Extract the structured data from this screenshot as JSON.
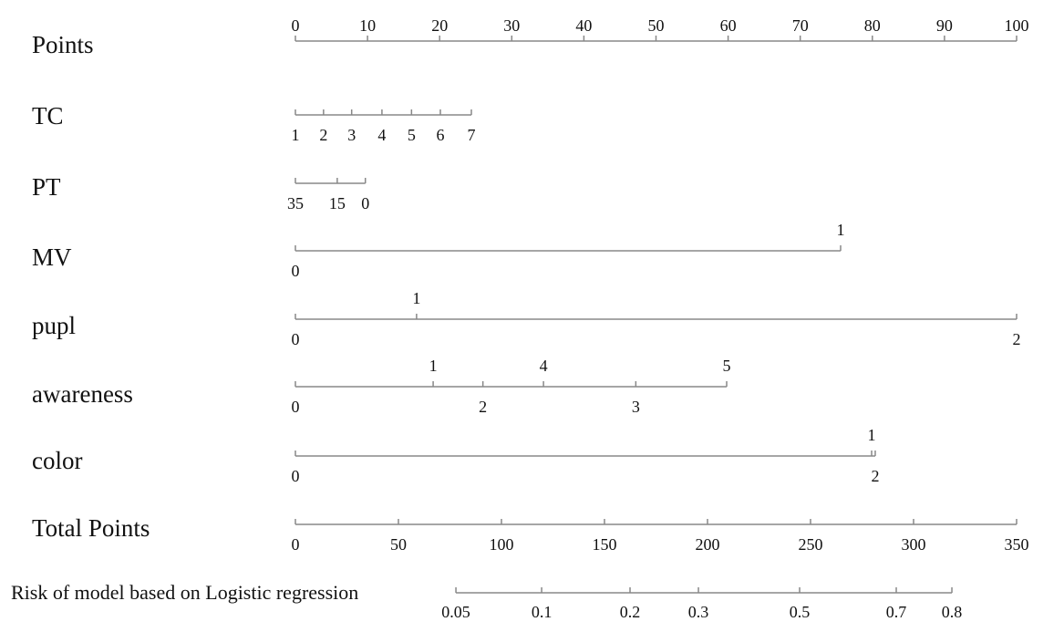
{
  "chart_data": {
    "type": "nomogram",
    "points_axis": {
      "name": "Points",
      "xlim": [
        0,
        100
      ],
      "xticks": [
        0,
        10,
        20,
        30,
        40,
        50,
        60,
        70,
        80,
        90,
        100
      ]
    },
    "scales": [
      {
        "name": "TC",
        "values": [
          1,
          2,
          3,
          4,
          5,
          6,
          7
        ],
        "points": [
          0,
          3.9,
          7.8,
          12.0,
          16.1,
          20.1,
          24.4
        ],
        "label_side": [
          "below",
          "below",
          "below",
          "below",
          "below",
          "below",
          "below"
        ]
      },
      {
        "name": "PT",
        "values": [
          35,
          15,
          0
        ],
        "points": [
          0,
          5.8,
          9.7
        ],
        "label_side": [
          "below",
          "below",
          "below"
        ]
      },
      {
        "name": "MV",
        "values": [
          0,
          1
        ],
        "points": [
          0,
          75.6
        ],
        "label_side": [
          "below",
          "above"
        ]
      },
      {
        "name": "pupl",
        "values": [
          0,
          1,
          2
        ],
        "points": [
          0,
          16.8,
          100
        ],
        "label_side": [
          "below",
          "above",
          "below"
        ]
      },
      {
        "name": "awareness",
        "values": [
          0,
          1,
          2,
          3,
          4,
          5
        ],
        "points": [
          0,
          19.1,
          26.0,
          47.2,
          34.4,
          59.8
        ],
        "label_side": [
          "below",
          "above",
          "below",
          "below",
          "above",
          "above"
        ]
      },
      {
        "name": "color",
        "values": [
          0,
          1,
          2
        ],
        "points": [
          0,
          79.9,
          80.4
        ],
        "label_side": [
          "below",
          "above",
          "below"
        ]
      }
    ],
    "total_axis": {
      "name": "Total Points",
      "xlim": [
        0,
        350
      ],
      "xticks": [
        0,
        50,
        100,
        150,
        200,
        250,
        300,
        350
      ]
    },
    "risk": {
      "name": "Risk of model based on Logistic regression",
      "values": [
        0.05,
        0.1,
        0.2,
        0.3,
        0.5,
        0.7,
        0.8
      ],
      "total_points": [
        77.9,
        119.5,
        162.4,
        195.6,
        244.7,
        291.6,
        318.6
      ]
    }
  }
}
